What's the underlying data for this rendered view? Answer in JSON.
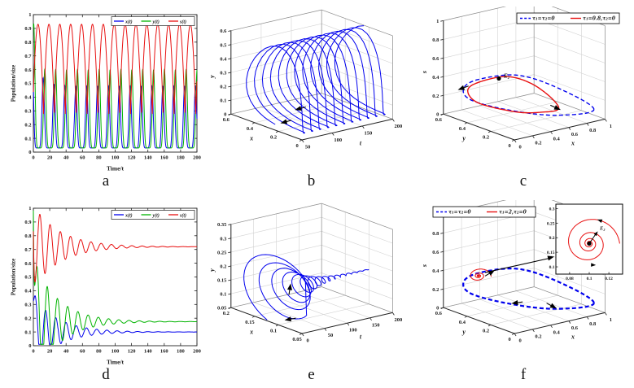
{
  "figure": {
    "background": "#ffffff",
    "captions": [
      "a",
      "b",
      "c",
      "d",
      "e",
      "f"
    ]
  },
  "colors": {
    "x": "#0000ee",
    "y": "#00b400",
    "s": "#e81111",
    "axis": "#222222",
    "grid": "#d2d2d2",
    "box": "#8f8f8f",
    "annotation": "#000000"
  },
  "chart_data": [
    {
      "id": "a",
      "type": "line",
      "title": "",
      "xlabel": "Time/t",
      "ylabel": "Population/size",
      "xlim": [
        0,
        200
      ],
      "ylim": [
        0,
        1
      ],
      "xticks": [
        0,
        20,
        40,
        60,
        80,
        100,
        120,
        140,
        160,
        180,
        200
      ],
      "yticks": [
        0,
        0.1,
        0.2,
        0.3,
        0.4,
        0.5,
        0.6,
        0.7,
        0.8,
        0.9,
        1
      ],
      "t_range": [
        0,
        200
      ],
      "grid": false,
      "legend_position": "top-right",
      "model": "oscillation",
      "behavior": "sustained periodic oscillations (limit cycle)",
      "series": [
        {
          "name": "x(t)",
          "color": "x",
          "baseline": 0.03,
          "amplitude": 0.45,
          "sharpness": 4,
          "period": 13.3,
          "phase": 0.652,
          "boost": 0.5,
          "btau": 9,
          "peak": 0.49,
          "trough": 0.03
        },
        {
          "name": "y(t)",
          "color": "y",
          "baseline": 0.03,
          "amplitude": 0.57,
          "sharpness": 4,
          "period": 13.3,
          "phase": 0.8,
          "boost": 0.7,
          "btau": 3,
          "peak": 0.6,
          "trough": 0.03
        },
        {
          "name": "s(t)",
          "color": "s",
          "baseline": 0.27,
          "amplitude": 0.66,
          "sharpness": 0.45,
          "period": 13.3,
          "phase": 0.18,
          "boost": 0,
          "btau": 1,
          "peak": 0.93,
          "trough": 0.27
        }
      ]
    },
    {
      "id": "b",
      "type": "line3d",
      "title": "",
      "axes": {
        "right": {
          "label": "t",
          "range": [
            50,
            200
          ],
          "ticks": [
            50,
            100,
            150,
            200
          ]
        },
        "left": {
          "label": "x",
          "range": [
            0,
            0.6
          ],
          "ticks": [
            0,
            0.2,
            0.4,
            0.6
          ]
        },
        "vertical": {
          "label": "y",
          "range": [
            0,
            0.6
          ],
          "ticks": [
            0,
            0.1,
            0.2,
            0.3,
            0.4,
            0.5,
            0.6
          ]
        }
      },
      "trajectory": {
        "source_panel": "a",
        "x_series": "x(t)",
        "y_series": "y(t)",
        "t_range": [
          50,
          200
        ]
      },
      "color": "x",
      "arrows": [
        {
          "x": 0.35,
          "y": 0.7,
          "angle": 165
        },
        {
          "x": 0.42,
          "y": 0.62,
          "angle": 165
        }
      ]
    },
    {
      "id": "c",
      "type": "line3d",
      "title": "",
      "axes": {
        "right": {
          "label": "x",
          "range": [
            0,
            1
          ],
          "ticks": [
            0,
            0.2,
            0.4,
            0.6,
            0.8,
            1
          ]
        },
        "left": {
          "label": "y",
          "range": [
            0,
            0.6
          ],
          "ticks": [
            0,
            0.2,
            0.4,
            0.6
          ]
        },
        "vertical": {
          "label": "s",
          "range": [
            0,
            1
          ],
          "ticks": [
            0,
            0.2,
            0.4,
            0.6,
            0.8,
            1
          ]
        }
      },
      "legend_position": "top-right",
      "legend": [
        {
          "label": "τ₁=τ₂=0",
          "color": "x",
          "dash": true
        },
        {
          "label": "τ₁=0.8,τ₂=0",
          "color": "s",
          "dash": false
        }
      ],
      "cycles": [
        {
          "name": "τ₁=τ₂=0",
          "color": "x",
          "dash": true,
          "width": 1.4,
          "points": [
            [
              0.93,
              0.04,
              0.1
            ],
            [
              0.6,
              0.1,
              0.38
            ],
            [
              0.32,
              0.22,
              0.52
            ],
            [
              0.1,
              0.38,
              0.45
            ],
            [
              0.04,
              0.46,
              0.33
            ],
            [
              0.1,
              0.44,
              0.2
            ],
            [
              0.35,
              0.3,
              0.1
            ],
            [
              0.65,
              0.15,
              0.05
            ]
          ]
        },
        {
          "name": "τ₁=0.8,τ₂=0",
          "color": "s",
          "dash": false,
          "width": 1.4,
          "points": [
            [
              0.62,
              0.1,
              0.16
            ],
            [
              0.45,
              0.16,
              0.4
            ],
            [
              0.26,
              0.26,
              0.5
            ],
            [
              0.1,
              0.4,
              0.4
            ],
            [
              0.06,
              0.44,
              0.3
            ],
            [
              0.13,
              0.4,
              0.18
            ],
            [
              0.35,
              0.27,
              0.1
            ],
            [
              0.5,
              0.18,
              0.1
            ]
          ]
        }
      ],
      "equilibrium": {
        "label": "E₂",
        "at": [
          0.22,
          0.3,
          0.47
        ]
      },
      "arrows": [
        {
          "x": 0.18,
          "y": 0.5,
          "angle": 160
        },
        {
          "x": 0.68,
          "y": 0.62,
          "angle": 24
        }
      ]
    },
    {
      "id": "d",
      "type": "line",
      "title": "",
      "xlabel": "Time/t",
      "ylabel": "Population/size",
      "xlim": [
        0,
        200
      ],
      "ylim": [
        0,
        1
      ],
      "xticks": [
        0,
        20,
        40,
        60,
        80,
        100,
        120,
        140,
        160,
        180,
        200
      ],
      "yticks": [
        0,
        0.1,
        0.2,
        0.3,
        0.4,
        0.5,
        0.6,
        0.7,
        0.8,
        0.9,
        1
      ],
      "t_range": [
        0,
        200
      ],
      "grid": false,
      "legend_position": "top-right",
      "model": "damped",
      "behavior": "damped oscillations converging to equilibrium",
      "series": [
        {
          "name": "x(t)",
          "color": "x",
          "eq": 0.1,
          "A": 0.26,
          "tau": 30,
          "T": 12.5,
          "t0": 11.9,
          "S": 0.15,
          "sTau": 1.2,
          "equilibrium": 0.1
        },
        {
          "name": "y(t)",
          "color": "y",
          "eq": 0.175,
          "A": 0.45,
          "tau": 30,
          "T": 12.5,
          "t0": 13.9,
          "S": 1.1,
          "sTau": 1.0,
          "equilibrium": 0.175
        },
        {
          "name": "s(t)",
          "color": "s",
          "eq": 0.72,
          "A": 0.3,
          "tau": 33,
          "T": 12.5,
          "t0": 4.9,
          "S": 0.3,
          "sTau": 0.8,
          "equilibrium": 0.72
        }
      ]
    },
    {
      "id": "e",
      "type": "line3d",
      "title": "",
      "axes": {
        "right": {
          "label": "t",
          "range": [
            0,
            200
          ],
          "ticks": [
            0,
            50,
            100,
            150,
            200
          ]
        },
        "left": {
          "label": "x",
          "range": [
            0.05,
            0.2
          ],
          "ticks": [
            0.05,
            0.1,
            0.15,
            0.2
          ]
        },
        "vertical": {
          "label": "y",
          "range": [
            0.05,
            0.35
          ],
          "ticks": [
            0.05,
            0.1,
            0.15,
            0.2,
            0.25,
            0.3,
            0.35
          ]
        }
      },
      "trajectory_model": {
        "t_range": [
          0,
          200
        ],
        "x": {
          "eq": 0.1,
          "A": 0.08,
          "tau": 40,
          "T": 12.5,
          "t0": 11.9
        },
        "y": {
          "eq": 0.175,
          "A": 0.13,
          "tau": 40,
          "T": 12.5,
          "t0": 14.9
        }
      },
      "color": "x",
      "arrows": [
        {
          "x": 0.4,
          "y": 0.5,
          "angle": -81
        },
        {
          "x": 0.37,
          "y": 0.72,
          "angle": 170
        }
      ]
    },
    {
      "id": "f",
      "type": "line3d",
      "title": "",
      "axes": {
        "right": {
          "label": "x",
          "range": [
            0,
            1
          ],
          "ticks": [
            0,
            0.2,
            0.4,
            0.6,
            0.8,
            1
          ]
        },
        "left": {
          "label": "y",
          "range": [
            0,
            0.6
          ],
          "ticks": [
            0,
            0.2,
            0.4,
            0.6
          ]
        },
        "vertical": {
          "label": "s",
          "range": [
            0,
            1
          ],
          "ticks": [
            0,
            0.2,
            0.4,
            0.6,
            0.8,
            1
          ]
        }
      },
      "legend_position": "top-left",
      "legend": [
        {
          "label": "τ₁=τ₂=0",
          "color": "x",
          "dash": true
        },
        {
          "label": "τ₁=2,τ₂=0",
          "color": "s",
          "dash": false
        }
      ],
      "cycles": [
        {
          "name": "τ₁=τ₂=0",
          "color": "x",
          "dash": true,
          "width": 2.2,
          "points": [
            [
              0.93,
              0.04,
              0.1
            ],
            [
              0.6,
              0.1,
              0.38
            ],
            [
              0.32,
              0.22,
              0.52
            ],
            [
              0.1,
              0.38,
              0.45
            ],
            [
              0.04,
              0.46,
              0.33
            ],
            [
              0.1,
              0.44,
              0.2
            ],
            [
              0.35,
              0.3,
              0.1
            ],
            [
              0.65,
              0.15,
              0.05
            ]
          ]
        }
      ],
      "spiral": {
        "name": "τ₁=2,τ₂=0",
        "color": "s",
        "center": [
          0.1,
          0.38,
          0.42
        ],
        "rx": 0.1,
        "ry": 0.09,
        "rs": 0.14,
        "decay": 7,
        "turns": 4.75,
        "phase_x": 0.8,
        "phase_y": 2.2
      },
      "arrows": [
        {
          "x": 0.44,
          "y": 0.62,
          "angle": 172
        },
        {
          "x": 0.66,
          "y": 0.65,
          "angle": 28
        },
        {
          "x": 0.36,
          "y": 0.42,
          "angle": -31
        }
      ],
      "inset": {
        "xlim": [
          0.066,
          0.134
        ],
        "xticks": [
          0.08,
          0.1,
          0.12
        ],
        "ylim": [
          0.075,
          0.315
        ],
        "yticks": [
          0.1,
          0.15,
          0.2,
          0.25,
          0.3
        ],
        "center": [
          0.1,
          0.18
        ],
        "rx": 0.031,
        "ry": 0.1,
        "decay": 8,
        "turns": 5,
        "label": "E₂",
        "arrows": [
          {
            "fx": 0.62,
            "fy": 0.22,
            "angle": 199
          },
          {
            "fx": 0.6,
            "fy": 0.87,
            "angle": 2
          }
        ]
      }
    }
  ]
}
